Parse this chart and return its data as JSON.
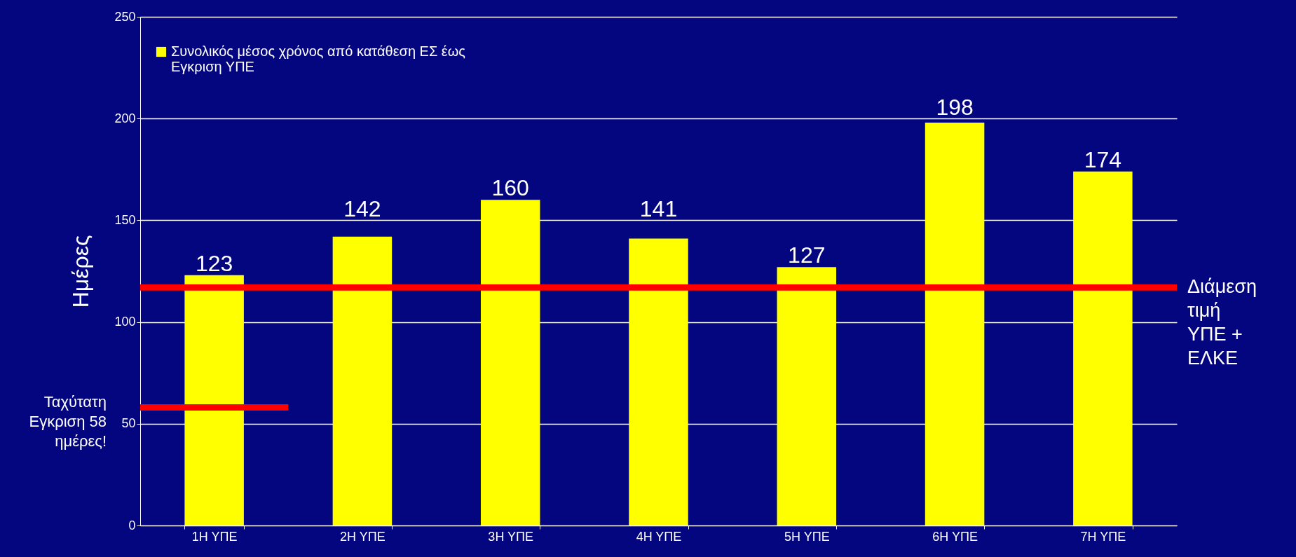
{
  "chart_data": {
    "type": "bar",
    "ylabel": "Ημέρες",
    "categories": [
      "1Η ΥΠΕ",
      "2Η ΥΠΕ",
      "3Η ΥΠΕ",
      "4Η ΥΠΕ",
      "5Η ΥΠΕ",
      "6Η ΥΠΕ",
      "7Η ΥΠΕ"
    ],
    "series": [
      {
        "name": "Συνολικός μέσος χρόνος από κατάθεση ΕΣ έως Εγκριση ΥΠΕ",
        "color": "#ffff00",
        "values": [
          123,
          142,
          160,
          141,
          127,
          198,
          174
        ]
      }
    ],
    "ylim": [
      0,
      250
    ],
    "yticks": [
      0,
      50,
      100,
      150,
      200,
      250
    ],
    "grid": "y",
    "legend": "top left",
    "data_labels": true,
    "ref_lines": [
      {
        "axis": "y",
        "value": 117,
        "label": "Διάμεση τιμή ΥΠΕ + ΕΛΚΕ",
        "color": "#ff0000"
      },
      {
        "axis": "y",
        "value": 58,
        "label": "Ταχύτατη Εγκριση 58 ημέρες!",
        "color": "#ff0000"
      }
    ]
  }
}
